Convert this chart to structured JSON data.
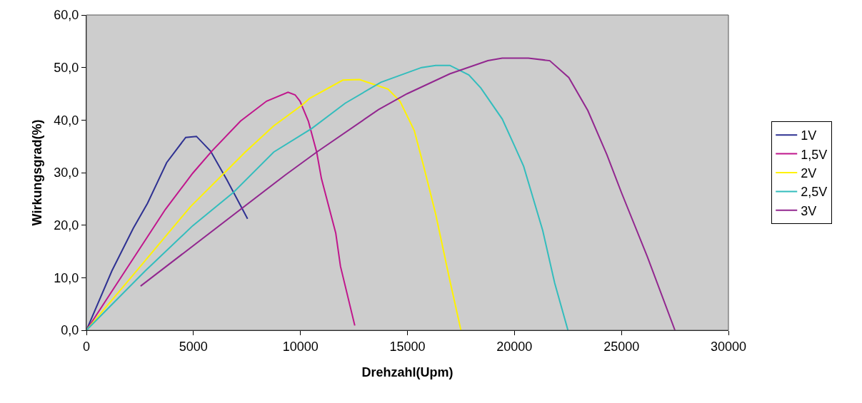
{
  "chart_data": {
    "type": "line",
    "xlabel": "Drehzahl(Upm)",
    "ylabel": "Wirkungsgrad(%)",
    "xlim": [
      0,
      30000
    ],
    "xticks": [
      0,
      5000,
      10000,
      15000,
      20000,
      25000,
      30000
    ],
    "ylim": [
      0,
      60
    ],
    "yticks": [
      {
        "value": 0,
        "label": "0,0"
      },
      {
        "value": 10,
        "label": "10,0"
      },
      {
        "value": 20,
        "label": "20,0"
      },
      {
        "value": 30,
        "label": "30,0"
      },
      {
        "value": 40,
        "label": "40,0"
      },
      {
        "value": 50,
        "label": "50,0"
      },
      {
        "value": 60,
        "label": "60,0"
      }
    ],
    "grid": false,
    "legend": "right",
    "marker": "none",
    "line_style": "solid",
    "series": [
      {
        "name": "1V",
        "color": "#2e3192",
        "x": [
          0,
          1190,
          2190,
          2860,
          3750,
          4640,
          5140,
          5800,
          6580,
          7530
        ],
        "values": [
          0,
          11.3,
          19.4,
          24.2,
          31.9,
          36.7,
          36.9,
          34.1,
          28.5,
          21.2
        ]
      },
      {
        "name": "1,5V",
        "color": "#c0168c",
        "x": [
          0,
          3690,
          4970,
          5860,
          7200,
          8420,
          9420,
          9750,
          9980,
          10370,
          10760,
          10980,
          11650,
          11870,
          12540
        ],
        "values": [
          0,
          23.0,
          29.9,
          34.1,
          39.8,
          43.6,
          45.3,
          44.8,
          43.6,
          39.8,
          33.9,
          28.9,
          18.5,
          12.2,
          0.9
        ]
      },
      {
        "name": "2V",
        "color": "#fff200",
        "x": [
          0,
          2530,
          4860,
          7420,
          8750,
          10090,
          10420,
          11980,
          12760,
          14090,
          14650,
          15320,
          15760,
          16320,
          16980,
          17500
        ],
        "values": [
          0,
          12.2,
          23.5,
          33.9,
          38.9,
          42.9,
          44.1,
          47.6,
          47.7,
          45.9,
          43.6,
          38.0,
          31.2,
          22.1,
          9.5,
          0
        ]
      },
      {
        "name": "2,5V",
        "color": "#33bdbd",
        "x": [
          0,
          2750,
          4970,
          6860,
          8750,
          10530,
          12090,
          13760,
          15660,
          16320,
          16980,
          17870,
          18430,
          19430,
          19990,
          20430,
          21320,
          21880,
          22500
        ],
        "values": [
          0,
          11.3,
          19.9,
          26.2,
          33.9,
          38.4,
          43.2,
          47.2,
          50.0,
          50.4,
          50.4,
          48.6,
          46.1,
          40.2,
          35.2,
          31.2,
          19.0,
          9.0,
          0
        ]
      },
      {
        "name": "3V",
        "color": "#92278f",
        "x": [
          2530,
          9310,
          10760,
          13650,
          14980,
          16980,
          18760,
          19430,
          20650,
          21650,
          22540,
          23430,
          24320,
          25000,
          26210,
          27500
        ],
        "values": [
          8.4,
          29.6,
          33.9,
          42.0,
          45.0,
          48.8,
          51.3,
          51.8,
          51.8,
          51.3,
          48.1,
          41.8,
          33.4,
          26.2,
          14.0,
          0
        ]
      }
    ]
  }
}
